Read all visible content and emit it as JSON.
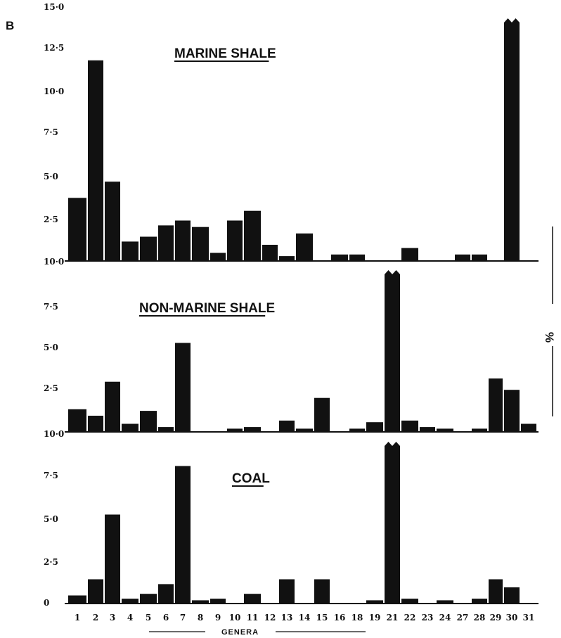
{
  "panel_label": "B",
  "x_axis_label": "GENERA",
  "unit_label": "%",
  "colors": {
    "bar": "#111111",
    "axis": "#111111"
  },
  "chart_data": [
    {
      "type": "bar",
      "title": "MARINE SHALE",
      "categories": [
        "1",
        "2",
        "3",
        "4",
        "5",
        "6",
        "7",
        "8",
        "9",
        "10",
        "11",
        "12",
        "13",
        "14",
        "15",
        "16",
        "18",
        "19",
        "21",
        "22",
        "23",
        "24",
        "27",
        "28",
        "29",
        "30",
        "31"
      ],
      "values": [
        3.9,
        12.4,
        4.9,
        1.2,
        1.5,
        2.2,
        2.5,
        2.1,
        0.5,
        2.5,
        3.1,
        1.0,
        0.3,
        1.7,
        0,
        0.4,
        0.4,
        0,
        0,
        0.8,
        0,
        0,
        0.4,
        0.4,
        0,
        15.0,
        0
      ],
      "broken_bars": [
        "30"
      ],
      "yticks": [
        "15·0",
        "12·5",
        "10·0",
        "7·5",
        "5·0",
        "2·5",
        "10·0"
      ],
      "ylim": [
        0,
        15
      ],
      "xlabel": "",
      "ylabel": ""
    },
    {
      "type": "bar",
      "title": "NON-MARINE SHALE",
      "categories": [
        "1",
        "2",
        "3",
        "4",
        "5",
        "6",
        "7",
        "8",
        "9",
        "10",
        "11",
        "12",
        "13",
        "14",
        "15",
        "16",
        "18",
        "19",
        "21",
        "22",
        "23",
        "24",
        "27",
        "28",
        "29",
        "30",
        "31"
      ],
      "values": [
        1.4,
        1.0,
        3.1,
        0.5,
        1.3,
        0.3,
        5.5,
        0,
        0,
        0.2,
        0.3,
        0,
        0.7,
        0.2,
        2.1,
        0,
        0.2,
        0.6,
        10.0,
        0.7,
        0.3,
        0.2,
        0,
        0.2,
        3.3,
        2.6,
        0.5
      ],
      "broken_bars": [
        "21"
      ],
      "yticks": [
        "7·5",
        "5·0",
        "2·5",
        "10·0"
      ],
      "ylim": [
        0,
        10
      ],
      "xlabel": "",
      "ylabel": ""
    },
    {
      "type": "bar",
      "title": "COAL",
      "categories": [
        "1",
        "2",
        "3",
        "4",
        "5",
        "6",
        "7",
        "8",
        "9",
        "10",
        "11",
        "12",
        "13",
        "14",
        "15",
        "16",
        "18",
        "19",
        "21",
        "22",
        "23",
        "24",
        "27",
        "28",
        "29",
        "30",
        "31"
      ],
      "values": [
        0.5,
        1.5,
        5.5,
        0.3,
        0.6,
        1.2,
        8.5,
        0.2,
        0.3,
        0,
        0.6,
        0,
        1.5,
        0,
        1.5,
        0,
        0,
        0.2,
        10.0,
        0.3,
        0,
        0.2,
        0,
        0.3,
        1.5,
        1.0,
        0
      ],
      "broken_bars": [
        "21"
      ],
      "yticks": [
        "7·5",
        "5·0",
        "2·5",
        "0"
      ],
      "ylim": [
        0,
        10
      ],
      "xlabel": "",
      "ylabel": ""
    }
  ]
}
